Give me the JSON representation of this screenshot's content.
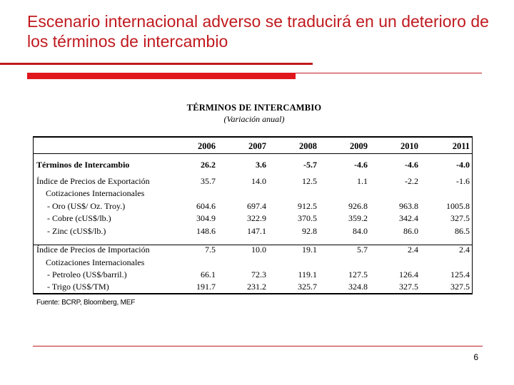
{
  "slide": {
    "title": "Escenario internacional adverso se traducirá en un deterioro de los términos de intercambio",
    "page_number": "6"
  },
  "table": {
    "title": "TÉRMINOS DE INTERCAMBIO",
    "subtitle": "(Variación anual)",
    "years": [
      "2006",
      "2007",
      "2008",
      "2009",
      "2010",
      "2011"
    ],
    "rows": [
      {
        "label": "Términos de Intercambio",
        "values": [
          "26.2",
          "3.6",
          "-5.7",
          "-4.6",
          "-4.6",
          "-4.0"
        ]
      },
      {
        "label": "Índice de Precios de Exportación",
        "values": [
          "35.7",
          "14.0",
          "12.5",
          "1.1",
          "-2.2",
          "-1.6"
        ]
      },
      {
        "label": "Cotizaciones Internacionales",
        "values": [
          "",
          "",
          "",
          "",
          "",
          ""
        ]
      },
      {
        "label": "- Oro (US$/ Oz. Troy.)",
        "values": [
          "604.6",
          "697.4",
          "912.5",
          "926.8",
          "963.8",
          "1005.8"
        ]
      },
      {
        "label": "- Cobre (cUS$/lb.)",
        "values": [
          "304.9",
          "322.9",
          "370.5",
          "359.2",
          "342.4",
          "327.5"
        ]
      },
      {
        "label": "- Zinc (cUS$/lb.)",
        "values": [
          "148.6",
          "147.1",
          "92.8",
          "84.0",
          "86.0",
          "86.5"
        ]
      },
      {
        "label": "Índice de Precios de Importación",
        "values": [
          "7.5",
          "10.0",
          "19.1",
          "5.7",
          "2.4",
          "2.4"
        ]
      },
      {
        "label": "Cotizaciones Internacionales",
        "values": [
          "",
          "",
          "",
          "",
          "",
          ""
        ]
      },
      {
        "label": "- Petroleo (US$/barril.)",
        "values": [
          "66.1",
          "72.3",
          "119.1",
          "127.5",
          "126.4",
          "125.4"
        ]
      },
      {
        "label": "- Trigo (US$/TM)",
        "values": [
          "191.7",
          "231.2",
          "325.7",
          "324.8",
          "327.5",
          "327.5"
        ]
      }
    ],
    "source": "Fuente: BCRP, Bloomberg, MEF"
  }
}
